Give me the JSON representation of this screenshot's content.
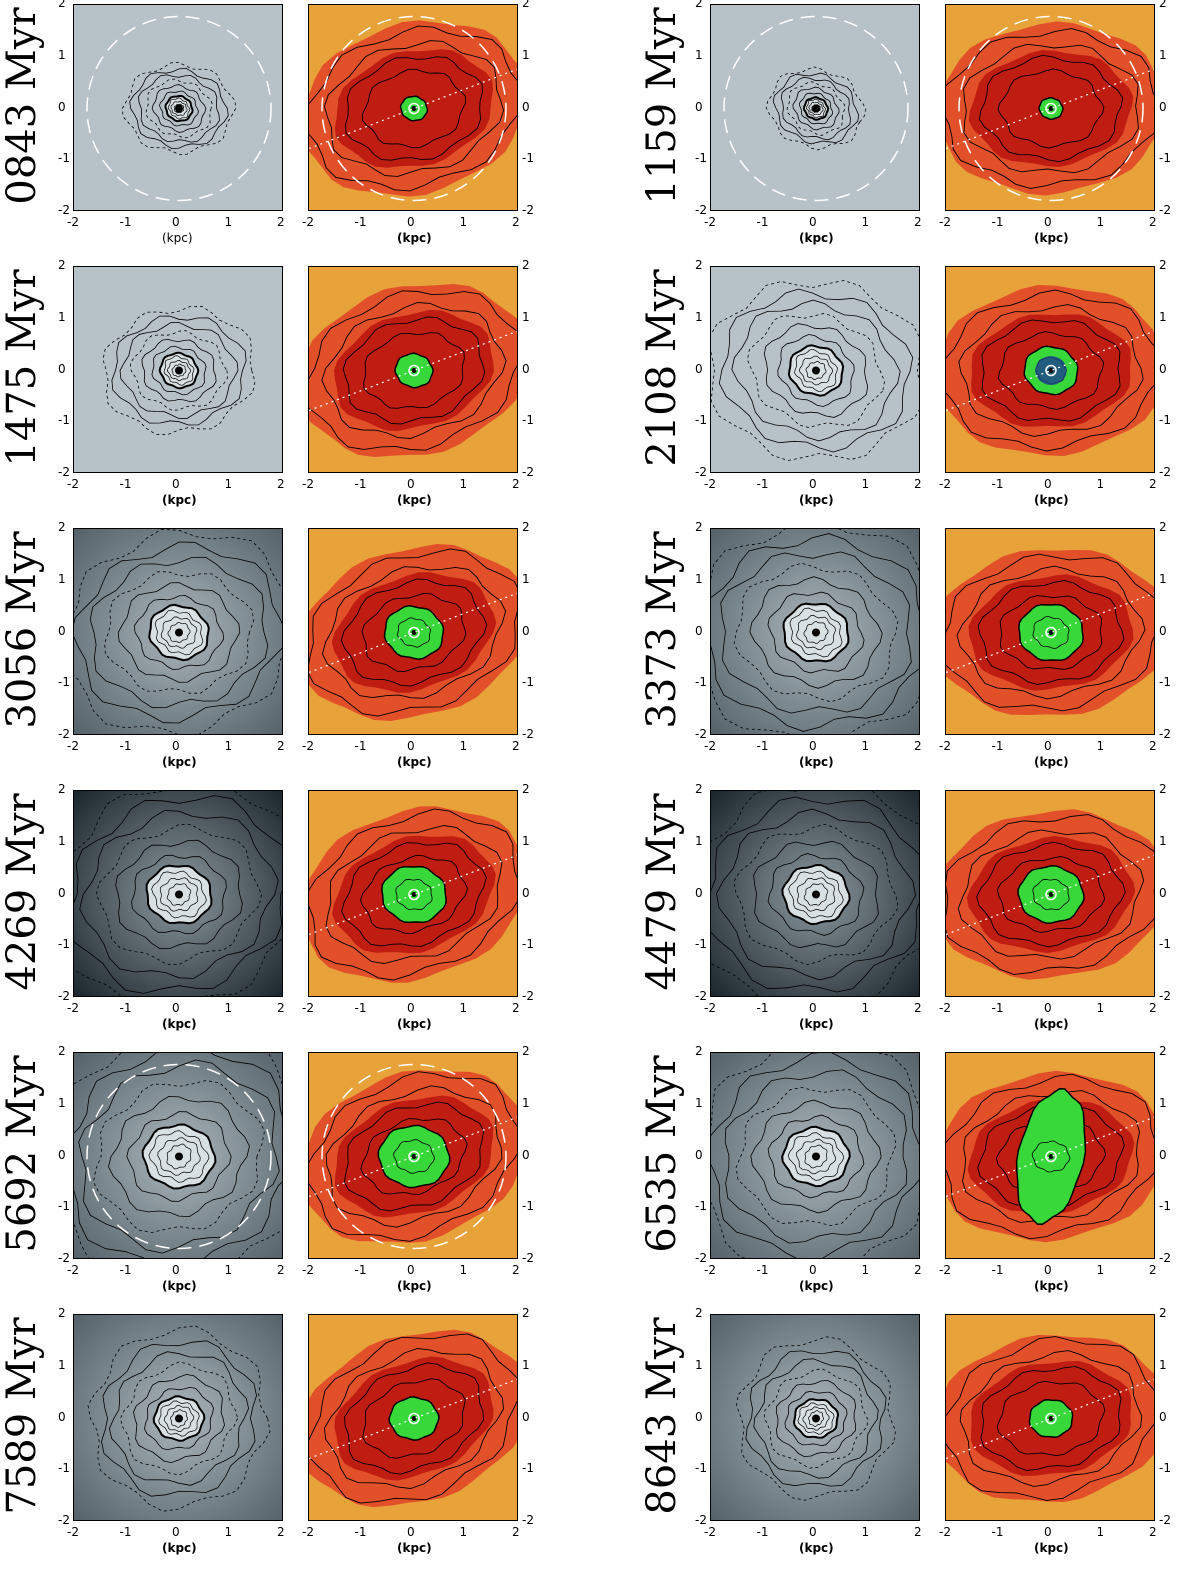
{
  "figure": {
    "axis_unit_label": "(kpc)",
    "tick_labels": [
      "-2",
      "-1",
      "0",
      "1",
      "2"
    ],
    "axis_range": [
      -2,
      2
    ],
    "colors": {
      "gas_background": "#b7c2c8",
      "gas_dark": "#1b252c",
      "star_outer": "#e8a23a",
      "star_mid": "#e2502a",
      "star_inner": "#c01d12",
      "star_core": "#39d83a",
      "star_deep": "#1d3f8e",
      "contour": "#000000",
      "guide_line": "#ffffff"
    },
    "rows": [
      {
        "left": {
          "label": "0843 Myr",
          "gas_shade": "light",
          "has_dashed_circle": true,
          "core_extent": 0.25,
          "xlabel_style": "plain"
        },
        "right": {
          "label": "1159 Myr",
          "gas_shade": "light",
          "has_dashed_circle": true,
          "core_extent": 0.22,
          "xlabel_style": "bold"
        }
      },
      {
        "left": {
          "label": "1475 Myr",
          "gas_shade": "light",
          "has_dashed_circle": false,
          "core_extent": 0.35,
          "xlabel_style": "bold"
        },
        "right": {
          "label": "2108 Myr",
          "gas_shade": "light",
          "has_dashed_circle": false,
          "core_extent": 0.5,
          "xlabel_style": "bold"
        }
      },
      {
        "left": {
          "label": "3056 Myr",
          "gas_shade": "medium",
          "has_dashed_circle": false,
          "core_extent": 0.55,
          "xlabel_style": "bold"
        },
        "right": {
          "label": "3373 Myr",
          "gas_shade": "medium",
          "has_dashed_circle": false,
          "core_extent": 0.6,
          "xlabel_style": "bold"
        }
      },
      {
        "left": {
          "label": "4269 Myr",
          "gas_shade": "dark",
          "has_dashed_circle": false,
          "core_extent": 0.6,
          "xlabel_style": "bold"
        },
        "right": {
          "label": "4479 Myr",
          "gas_shade": "dark",
          "has_dashed_circle": false,
          "core_extent": 0.6,
          "xlabel_style": "bold"
        }
      },
      {
        "left": {
          "label": "5692 Myr",
          "gas_shade": "medium",
          "has_dashed_circle": true,
          "core_extent": 0.65,
          "xlabel_style": "bold"
        },
        "right": {
          "label": "6535 Myr",
          "gas_shade": "medium",
          "has_dashed_circle": false,
          "core_extent": 0.6,
          "xlabel_style": "bold"
        }
      },
      {
        "left": {
          "label": "7589 Myr",
          "gas_shade": "medium",
          "has_dashed_circle": false,
          "core_extent": 0.45,
          "xlabel_style": "bold"
        },
        "right": {
          "label": "8643 Myr",
          "gas_shade": "medium",
          "has_dashed_circle": false,
          "core_extent": 0.4,
          "xlabel_style": "bold"
        }
      }
    ]
  }
}
